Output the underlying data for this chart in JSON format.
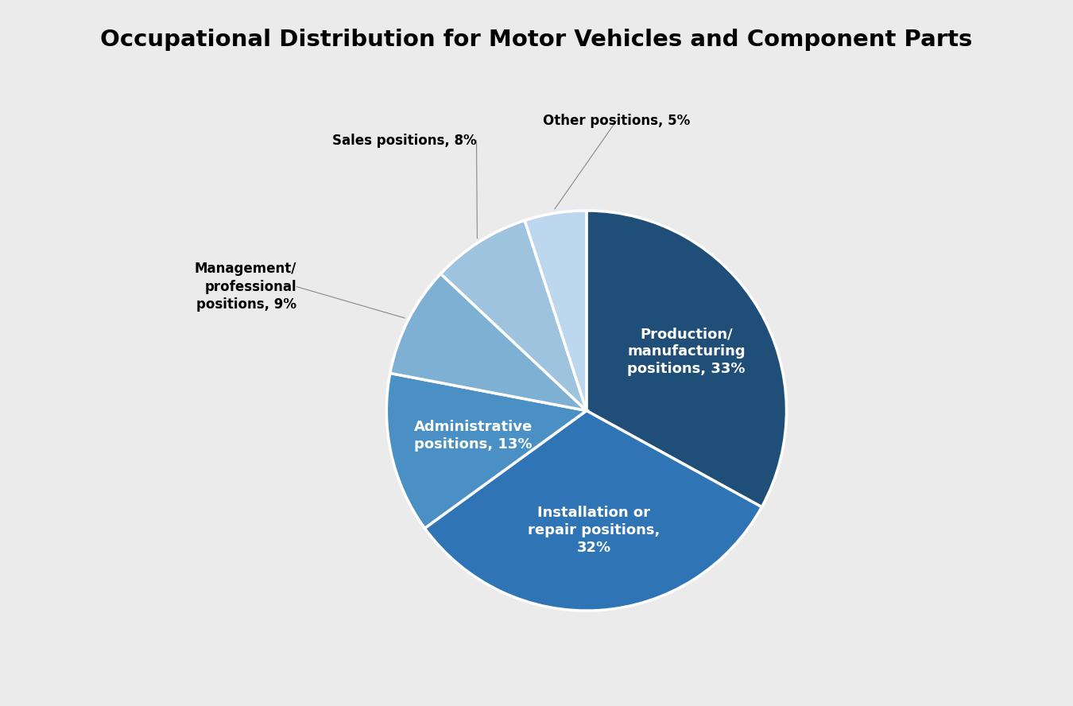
{
  "title": "Occupational Distribution for Motor Vehicles and Component Parts",
  "slices": [
    {
      "label": "Production/\nmanufacturing\npositions, 33%",
      "value": 33,
      "color": "#1F4E79",
      "text_color": "white"
    },
    {
      "label": "Installation or\nrepair positions,\n32%",
      "value": 32,
      "color": "#2F75B6",
      "text_color": "white"
    },
    {
      "label": "Administrative\npositions, 13%",
      "value": 13,
      "color": "#4A90C4",
      "text_color": "white"
    },
    {
      "label": "Management/\nprofessional\npositions, 9%",
      "value": 9,
      "color": "#7EB0D4",
      "text_color": "black"
    },
    {
      "label": "Sales positions, 8%",
      "value": 8,
      "color": "#9DC3DE",
      "text_color": "black"
    },
    {
      "label": "Other positions, 5%",
      "value": 5,
      "color": "#BDD7EE",
      "text_color": "black"
    }
  ],
  "background_color": "#EBEBEB",
  "title_fontsize": 21,
  "label_fontsize_internal": 13,
  "label_fontsize_external": 12,
  "figsize": [
    13.5,
    8.88
  ]
}
